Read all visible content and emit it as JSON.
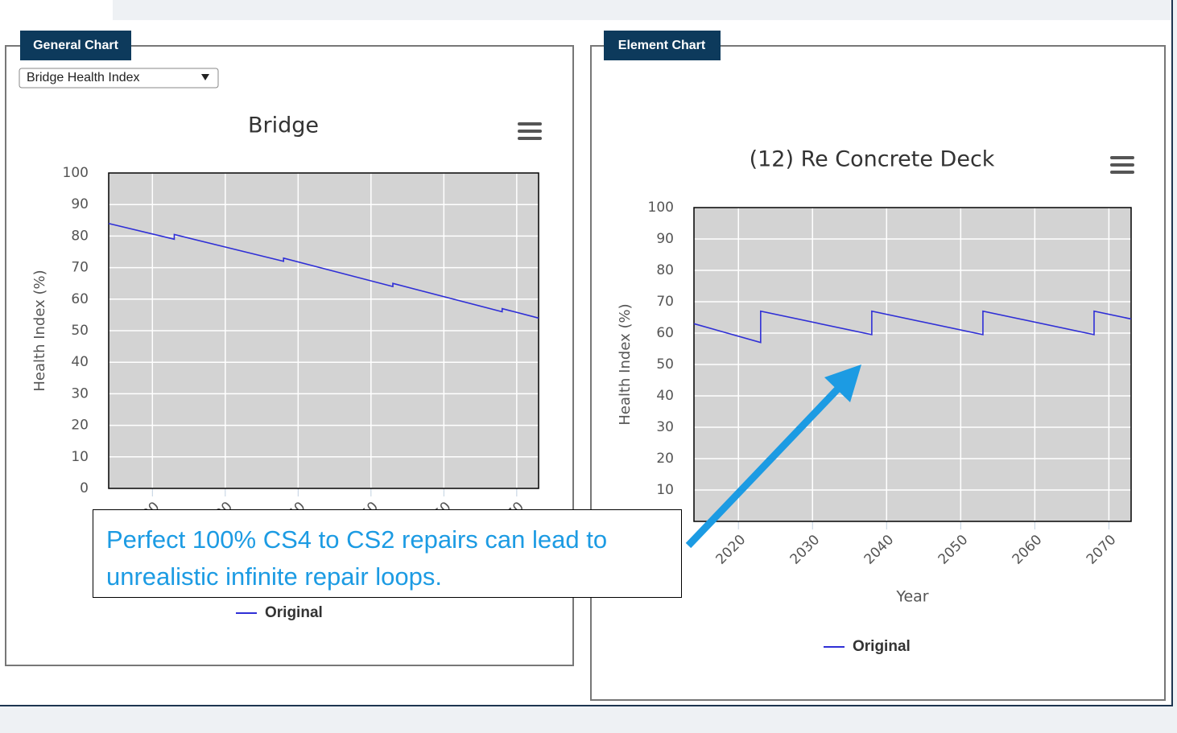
{
  "panels": [
    {
      "label": "General Chart",
      "dropdown": "Bridge Health Index"
    },
    {
      "label": "Element Chart"
    }
  ],
  "chart_data": [
    {
      "type": "line",
      "title": "Bridge",
      "y_label": "Health Index (%)",
      "x": [
        2014,
        2023,
        2023,
        2038,
        2038,
        2053,
        2053,
        2068,
        2068,
        2073
      ],
      "series": [
        {
          "name": "Original",
          "color": "#2f2fd6",
          "values": [
            84,
            79,
            80.5,
            72,
            73,
            64,
            65,
            56,
            57,
            54
          ]
        }
      ],
      "xlim": [
        2014,
        2073
      ],
      "xticks": [
        2020,
        2030,
        2040,
        2050,
        2060,
        2070
      ],
      "ylim": [
        0,
        100
      ],
      "yticks": [
        0,
        10,
        20,
        30,
        40,
        50,
        60,
        70,
        80,
        90,
        100
      ],
      "grid": true
    },
    {
      "type": "line",
      "title": "(12) Re Concrete Deck",
      "x_label": "Year",
      "y_label": "Health Index (%)",
      "x": [
        2014,
        2023,
        2023,
        2038,
        2038,
        2053,
        2053,
        2068,
        2068,
        2073
      ],
      "series": [
        {
          "name": "Original",
          "color": "#2f2fd6",
          "values": [
            63,
            57,
            67,
            59.5,
            67,
            59.5,
            67,
            59.5,
            67,
            64.5
          ]
        }
      ],
      "xlim": [
        2014,
        2073
      ],
      "xticks": [
        2020,
        2030,
        2040,
        2050,
        2060,
        2070
      ],
      "ylim": [
        0,
        100
      ],
      "yticks": [
        0,
        10,
        20,
        30,
        40,
        50,
        60,
        70,
        80,
        90,
        100
      ],
      "grid": true
    }
  ],
  "callout": "Perfect 100% CS4 to CS2 repairs can lead to unrealistic infinite repair loops."
}
